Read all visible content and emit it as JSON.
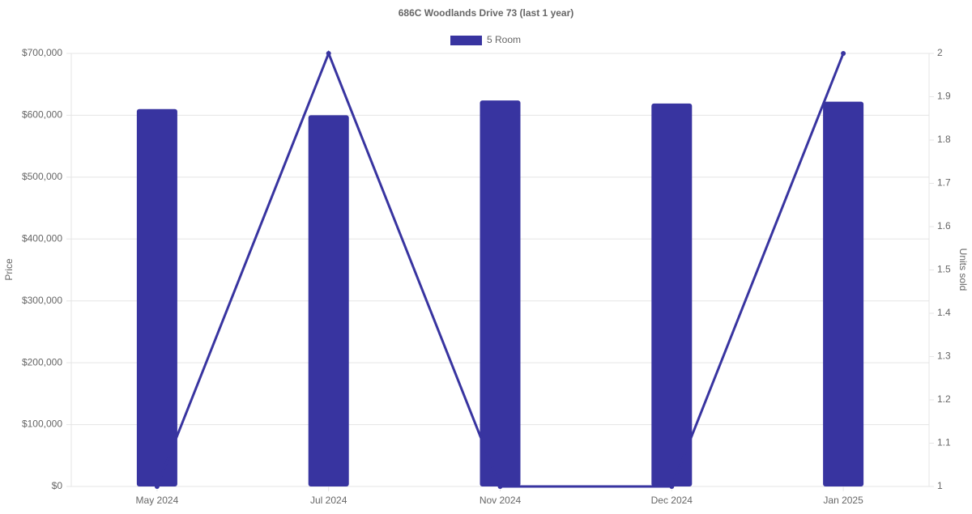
{
  "chart_data": {
    "type": "bar",
    "title": "686C Woodlands Drive 73 (last 1 year)",
    "categories": [
      "May 2024",
      "Jul 2024",
      "Nov 2024",
      "Dec 2024",
      "Jan 2025"
    ],
    "series": [
      {
        "name": "5 Room",
        "type": "bar",
        "color": "#3834a0",
        "values": [
          610000,
          600000,
          624000,
          619000,
          622000
        ]
      },
      {
        "type": "line",
        "axis": "y2",
        "color": "#3834a0",
        "values": [
          1,
          2,
          1,
          1,
          2
        ]
      }
    ],
    "ylabel": "Price",
    "y2label": "Units sold",
    "ylim": [
      0,
      700000
    ],
    "yticks": [
      {
        "value": 0,
        "label": "$0"
      },
      {
        "value": 100000,
        "label": "$100,000"
      },
      {
        "value": 200000,
        "label": "$200,000"
      },
      {
        "value": 300000,
        "label": "$300,000"
      },
      {
        "value": 400000,
        "label": "$400,000"
      },
      {
        "value": 500000,
        "label": "$500,000"
      },
      {
        "value": 600000,
        "label": "$600,000"
      },
      {
        "value": 700000,
        "label": "$700,000"
      }
    ],
    "y2lim": [
      1,
      2
    ],
    "y2ticks": [
      1,
      1.1,
      1.2,
      1.3,
      1.4,
      1.5,
      1.6,
      1.7,
      1.8,
      1.9,
      2
    ],
    "grid": true,
    "legend": "top"
  }
}
